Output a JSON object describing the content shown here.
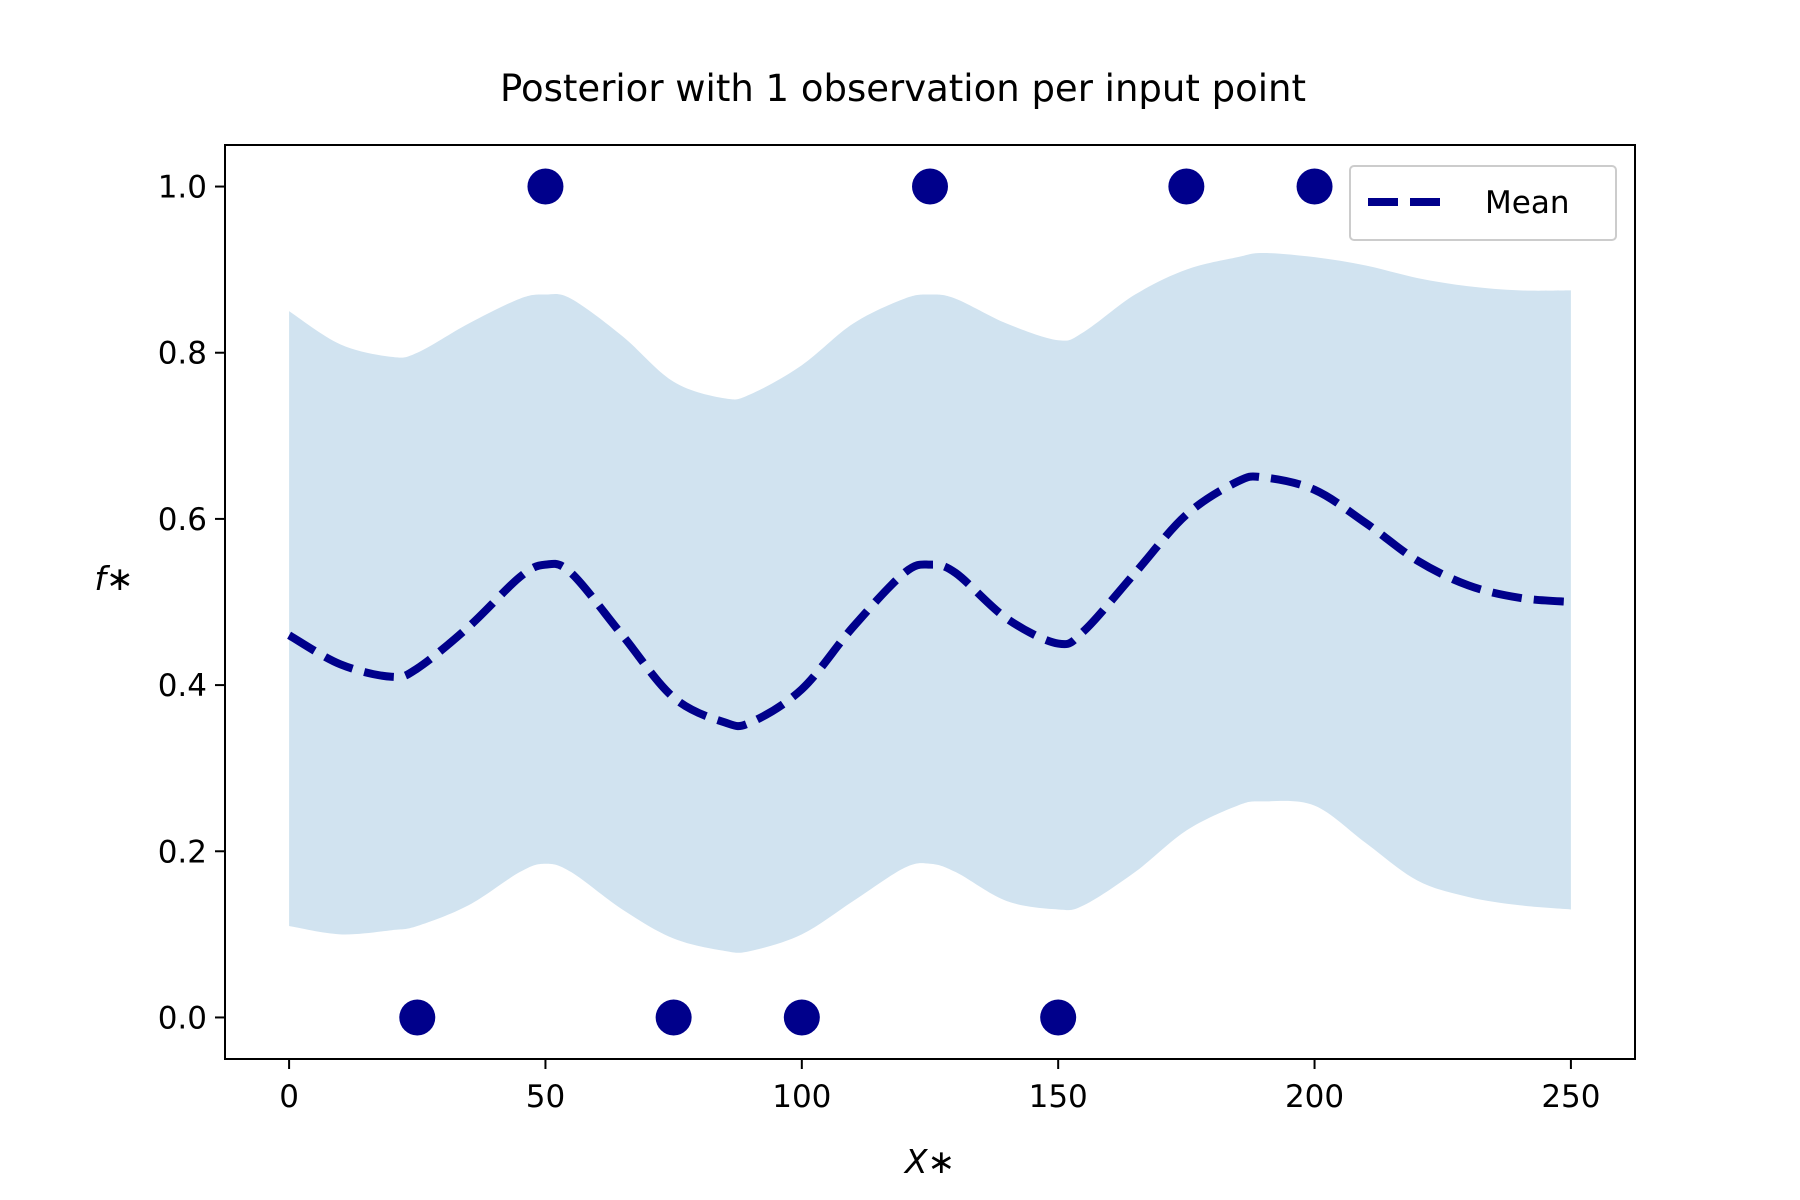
{
  "chart_data": {
    "type": "line",
    "title": "Posterior with 1 observation per input point",
    "xlabel": "X∗",
    "ylabel": "f∗",
    "xlim": [
      -12.5,
      262.5
    ],
    "ylim": [
      -0.05,
      1.05
    ],
    "xticks": [
      0,
      50,
      100,
      150,
      200,
      250
    ],
    "yticks": [
      0.0,
      0.2,
      0.4,
      0.6,
      0.8,
      1.0
    ],
    "xtick_labels": [
      "0",
      "50",
      "100",
      "150",
      "200",
      "250"
    ],
    "ytick_labels": [
      "0.0",
      "0.2",
      "0.4",
      "0.6",
      "0.8",
      "1.0"
    ],
    "grid": false,
    "legend": {
      "position": "top-right",
      "entries": [
        "Mean"
      ]
    },
    "colors": {
      "mean": "#00008b",
      "band": "#d1e3f0",
      "points": "#00008b"
    },
    "series": [
      {
        "name": "Mean",
        "style": "dashed",
        "x": [
          0,
          10,
          20,
          25,
          35,
          45,
          50,
          55,
          65,
          75,
          85,
          90,
          100,
          110,
          120,
          125,
          130,
          140,
          150,
          155,
          165,
          175,
          185,
          190,
          200,
          210,
          220,
          230,
          240,
          250
        ],
        "y": [
          0.46,
          0.425,
          0.41,
          0.42,
          0.47,
          0.53,
          0.545,
          0.535,
          0.46,
          0.385,
          0.355,
          0.355,
          0.395,
          0.47,
          0.535,
          0.545,
          0.535,
          0.48,
          0.45,
          0.465,
          0.535,
          0.605,
          0.645,
          0.65,
          0.635,
          0.595,
          0.55,
          0.52,
          0.505,
          0.5
        ]
      }
    ],
    "band": {
      "x": [
        0,
        10,
        20,
        25,
        35,
        45,
        50,
        55,
        65,
        75,
        85,
        90,
        100,
        110,
        120,
        125,
        130,
        140,
        150,
        155,
        165,
        175,
        185,
        190,
        200,
        210,
        220,
        230,
        240,
        250
      ],
      "upper": [
        0.85,
        0.81,
        0.795,
        0.8,
        0.835,
        0.865,
        0.87,
        0.865,
        0.82,
        0.765,
        0.745,
        0.75,
        0.785,
        0.835,
        0.865,
        0.87,
        0.865,
        0.835,
        0.815,
        0.825,
        0.87,
        0.9,
        0.915,
        0.92,
        0.915,
        0.905,
        0.89,
        0.88,
        0.875,
        0.875
      ],
      "lower": [
        0.11,
        0.1,
        0.105,
        0.11,
        0.135,
        0.175,
        0.185,
        0.175,
        0.13,
        0.095,
        0.08,
        0.08,
        0.1,
        0.14,
        0.18,
        0.185,
        0.175,
        0.14,
        0.13,
        0.135,
        0.175,
        0.225,
        0.255,
        0.26,
        0.255,
        0.21,
        0.165,
        0.145,
        0.135,
        0.13
      ]
    },
    "observations": {
      "x": [
        25,
        50,
        75,
        100,
        125,
        150,
        175,
        200
      ],
      "y": [
        0,
        1,
        0,
        0,
        1,
        0,
        1,
        1
      ]
    }
  }
}
